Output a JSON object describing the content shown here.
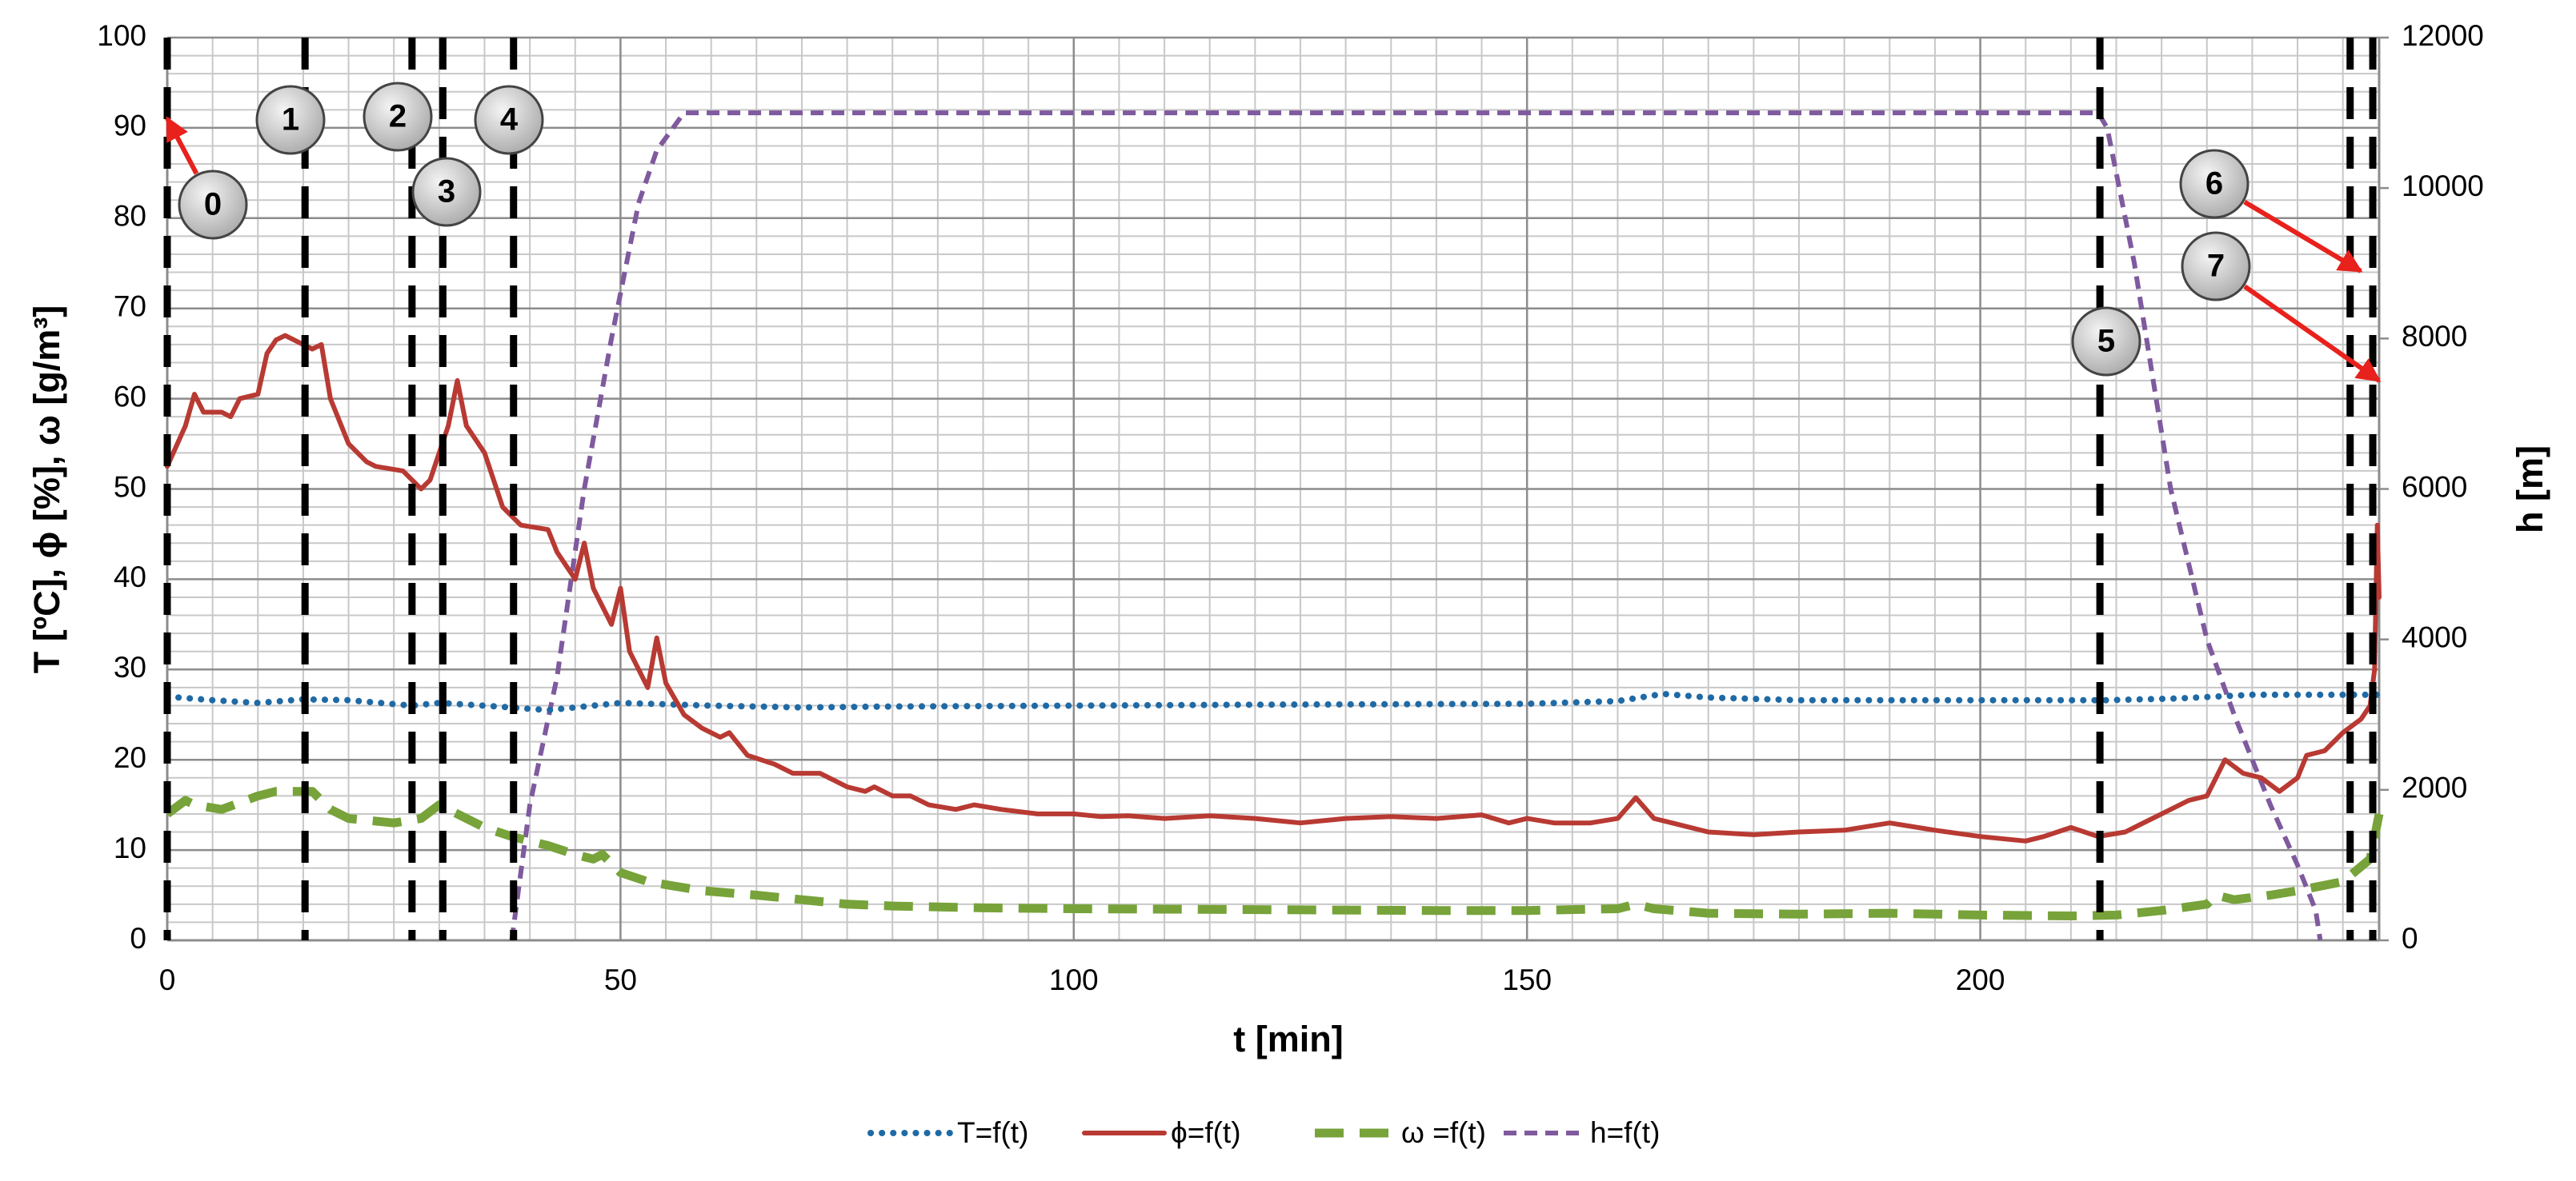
{
  "chart_data": {
    "type": "line",
    "xlabel": "t [min]",
    "ylabel": "T [ºC], ϕ [%], ω [g/m³]",
    "y2label": "h [m]",
    "xlim": [
      0,
      244
    ],
    "ylim": [
      0,
      100
    ],
    "y2lim": [
      0,
      12000
    ],
    "xticks": [
      0,
      50,
      100,
      150,
      200
    ],
    "yticks": [
      0,
      10,
      20,
      30,
      40,
      50,
      60,
      70,
      80,
      90,
      100
    ],
    "y2ticks": [
      0,
      2000,
      4000,
      6000,
      8000,
      10000,
      12000
    ],
    "grid": true,
    "minor_grid": {
      "x": 5,
      "y": 2
    },
    "legend": "bottom",
    "series": [
      {
        "name": "T=f(t)",
        "color": "#1f6aa5",
        "style": "dotted",
        "x": [
          0,
          5,
          10,
          15,
          20,
          27,
          30,
          35,
          42,
          50,
          60,
          70,
          80,
          100,
          120,
          150,
          160,
          165,
          170,
          180,
          200,
          214,
          222,
          230,
          237,
          244
        ],
        "values": [
          27,
          26.6,
          26.3,
          26.7,
          26.6,
          26,
          26.3,
          26,
          25.5,
          26.3,
          26,
          25.8,
          25.9,
          26,
          26.1,
          26.2,
          26.5,
          27.3,
          26.9,
          26.6,
          26.6,
          26.6,
          26.8,
          27.2,
          27.2,
          27.2
        ]
      },
      {
        "name": "ϕ=f(t)",
        "color": "#b83a33",
        "style": "solid",
        "x": [
          0,
          2,
          3,
          4,
          6,
          7,
          8,
          10,
          11,
          12,
          13,
          15,
          16,
          17,
          18,
          20,
          22,
          23,
          26,
          28,
          29,
          31,
          32,
          33,
          35,
          37,
          39,
          42,
          43,
          45,
          46,
          47,
          49,
          50,
          51,
          53,
          54,
          55,
          57,
          59,
          61,
          62,
          64,
          67,
          69,
          72,
          75,
          77,
          78,
          80,
          82,
          84,
          87,
          89,
          92,
          96,
          100,
          103,
          106,
          110,
          115,
          120,
          125,
          130,
          135,
          140,
          145,
          148,
          150,
          153,
          157,
          160,
          162,
          164,
          166,
          170,
          175,
          180,
          185,
          190,
          195,
          200,
          205,
          207,
          210,
          213,
          216,
          220,
          223,
          225,
          227,
          229,
          231,
          233,
          235,
          236,
          238,
          240,
          242,
          243,
          243.5,
          243.8,
          244
        ],
        "values": [
          52.5,
          57,
          60.5,
          58.5,
          58.5,
          58,
          60,
          60.5,
          65,
          66.5,
          67,
          66,
          65.5,
          66,
          60,
          55,
          53,
          52.5,
          52,
          50,
          51,
          57,
          62,
          57,
          54,
          48,
          46,
          45.5,
          43,
          40,
          44,
          39,
          35,
          39,
          32,
          28,
          33.5,
          28.5,
          25,
          23.5,
          22.5,
          23,
          20.5,
          19.5,
          18.5,
          18.5,
          17,
          16.5,
          17,
          16,
          16,
          15,
          14.5,
          15,
          14.5,
          14,
          14,
          13.7,
          13.8,
          13.5,
          13.8,
          13.5,
          13,
          13.5,
          13.7,
          13.5,
          13.9,
          13,
          13.5,
          13,
          13,
          13.5,
          15.8,
          13.5,
          13,
          12,
          11.7,
          12,
          12.2,
          13,
          12.2,
          11.5,
          11,
          11.5,
          12.5,
          11.5,
          12,
          14,
          15.5,
          16,
          20,
          18.5,
          18,
          16.5,
          18,
          20.5,
          21,
          23,
          24.5,
          26,
          30,
          46,
          38
        ]
      },
      {
        "name": "ω  =f(t)",
        "color": "#77a33a",
        "style": "dashed",
        "x": [
          0,
          2,
          3,
          6,
          10,
          12,
          16,
          18,
          20,
          25,
          28,
          30,
          32,
          35,
          38,
          42,
          45,
          47,
          48,
          50,
          53,
          56,
          59,
          65,
          70,
          75,
          80,
          90,
          100,
          120,
          140,
          150,
          160,
          162,
          164,
          170,
          180,
          190,
          200,
          210,
          215,
          220,
          225,
          226,
          228,
          232,
          235,
          240,
          243,
          244
        ],
        "values": [
          14,
          15.5,
          15,
          14.5,
          16,
          16.5,
          16.5,
          14.5,
          13.5,
          13,
          13.5,
          15,
          14,
          12.5,
          11.5,
          10.5,
          9.5,
          9,
          9.5,
          7.5,
          6.5,
          6,
          5.5,
          5,
          4.5,
          4,
          3.8,
          3.6,
          3.5,
          3.4,
          3.3,
          3.3,
          3.5,
          4,
          3.5,
          3,
          2.9,
          3,
          2.8,
          2.7,
          2.8,
          3.3,
          4,
          5,
          4.5,
          5,
          5.5,
          6.5,
          9,
          14
        ]
      },
      {
        "name": "h=f(t)",
        "color": "#7f5a9e",
        "style": "dashed-thin",
        "axis": "y2",
        "x": [
          38,
          40,
          43,
          46,
          49,
          52,
          54,
          57,
          213,
          214,
          217,
          221,
          225,
          228,
          232,
          235,
          237,
          237.5
        ],
        "values": [
          0,
          1800,
          3500,
          6000,
          8000,
          9800,
          10500,
          11000,
          11000,
          10800,
          9000,
          6000,
          4000,
          3000,
          1800,
          1000,
          400,
          0
        ]
      }
    ],
    "annotations": [
      {
        "label": "0",
        "x": 0
      },
      {
        "label": "1",
        "x": 15.2
      },
      {
        "label": "2",
        "x": 27
      },
      {
        "label": "3",
        "x": 30.4
      },
      {
        "label": "4",
        "x": 38.2
      },
      {
        "label": "5",
        "x": 213.2
      },
      {
        "label": "6",
        "x": 240.8
      },
      {
        "label": "7",
        "x": 243.3
      }
    ]
  }
}
